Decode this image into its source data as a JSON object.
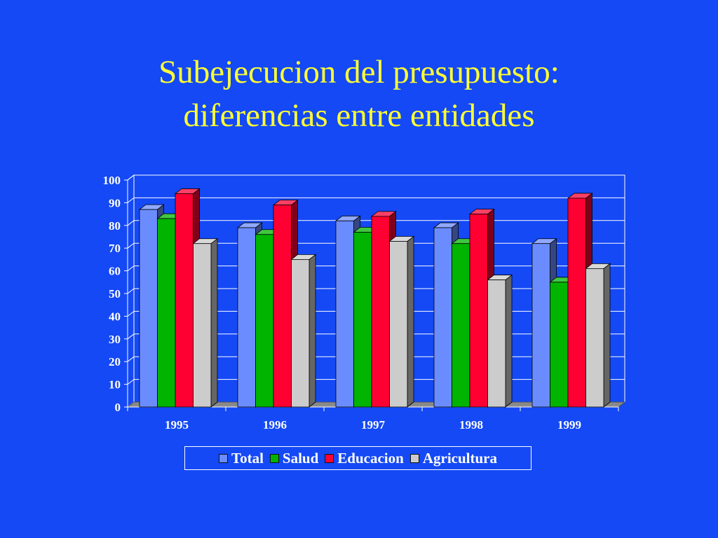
{
  "slide": {
    "title_line1": "Subejecucion del presupuesto:",
    "title_line2": "diferencias entre entidades"
  },
  "colors": {
    "background": "#1449f5",
    "title": "#ffff33",
    "axis_text": "#ffffff",
    "gridline": "#ffffff",
    "floor": "#8a8a8a"
  },
  "chart_data": {
    "type": "bar",
    "style": "3d-clustered",
    "categories": [
      "1995",
      "1996",
      "1997",
      "1998",
      "1999"
    ],
    "series": [
      {
        "name": "Total",
        "color": "#6b8cff",
        "values": [
          87,
          79,
          82,
          79,
          72
        ]
      },
      {
        "name": "Salud",
        "color": "#00b400",
        "values": [
          83,
          76,
          77,
          72,
          55
        ]
      },
      {
        "name": "Educacion",
        "color": "#ff0033",
        "values": [
          94,
          89,
          84,
          85,
          92
        ]
      },
      {
        "name": "Agricultura",
        "color": "#cccccc",
        "values": [
          72,
          65,
          73,
          56,
          61
        ]
      }
    ],
    "ylim": [
      0,
      100
    ],
    "yticks": [
      "0",
      "10",
      "20",
      "30",
      "40",
      "50",
      "60",
      "70",
      "80",
      "90",
      "100"
    ],
    "grid": true,
    "legend_position": "bottom",
    "title": "",
    "xlabel": "",
    "ylabel": ""
  }
}
